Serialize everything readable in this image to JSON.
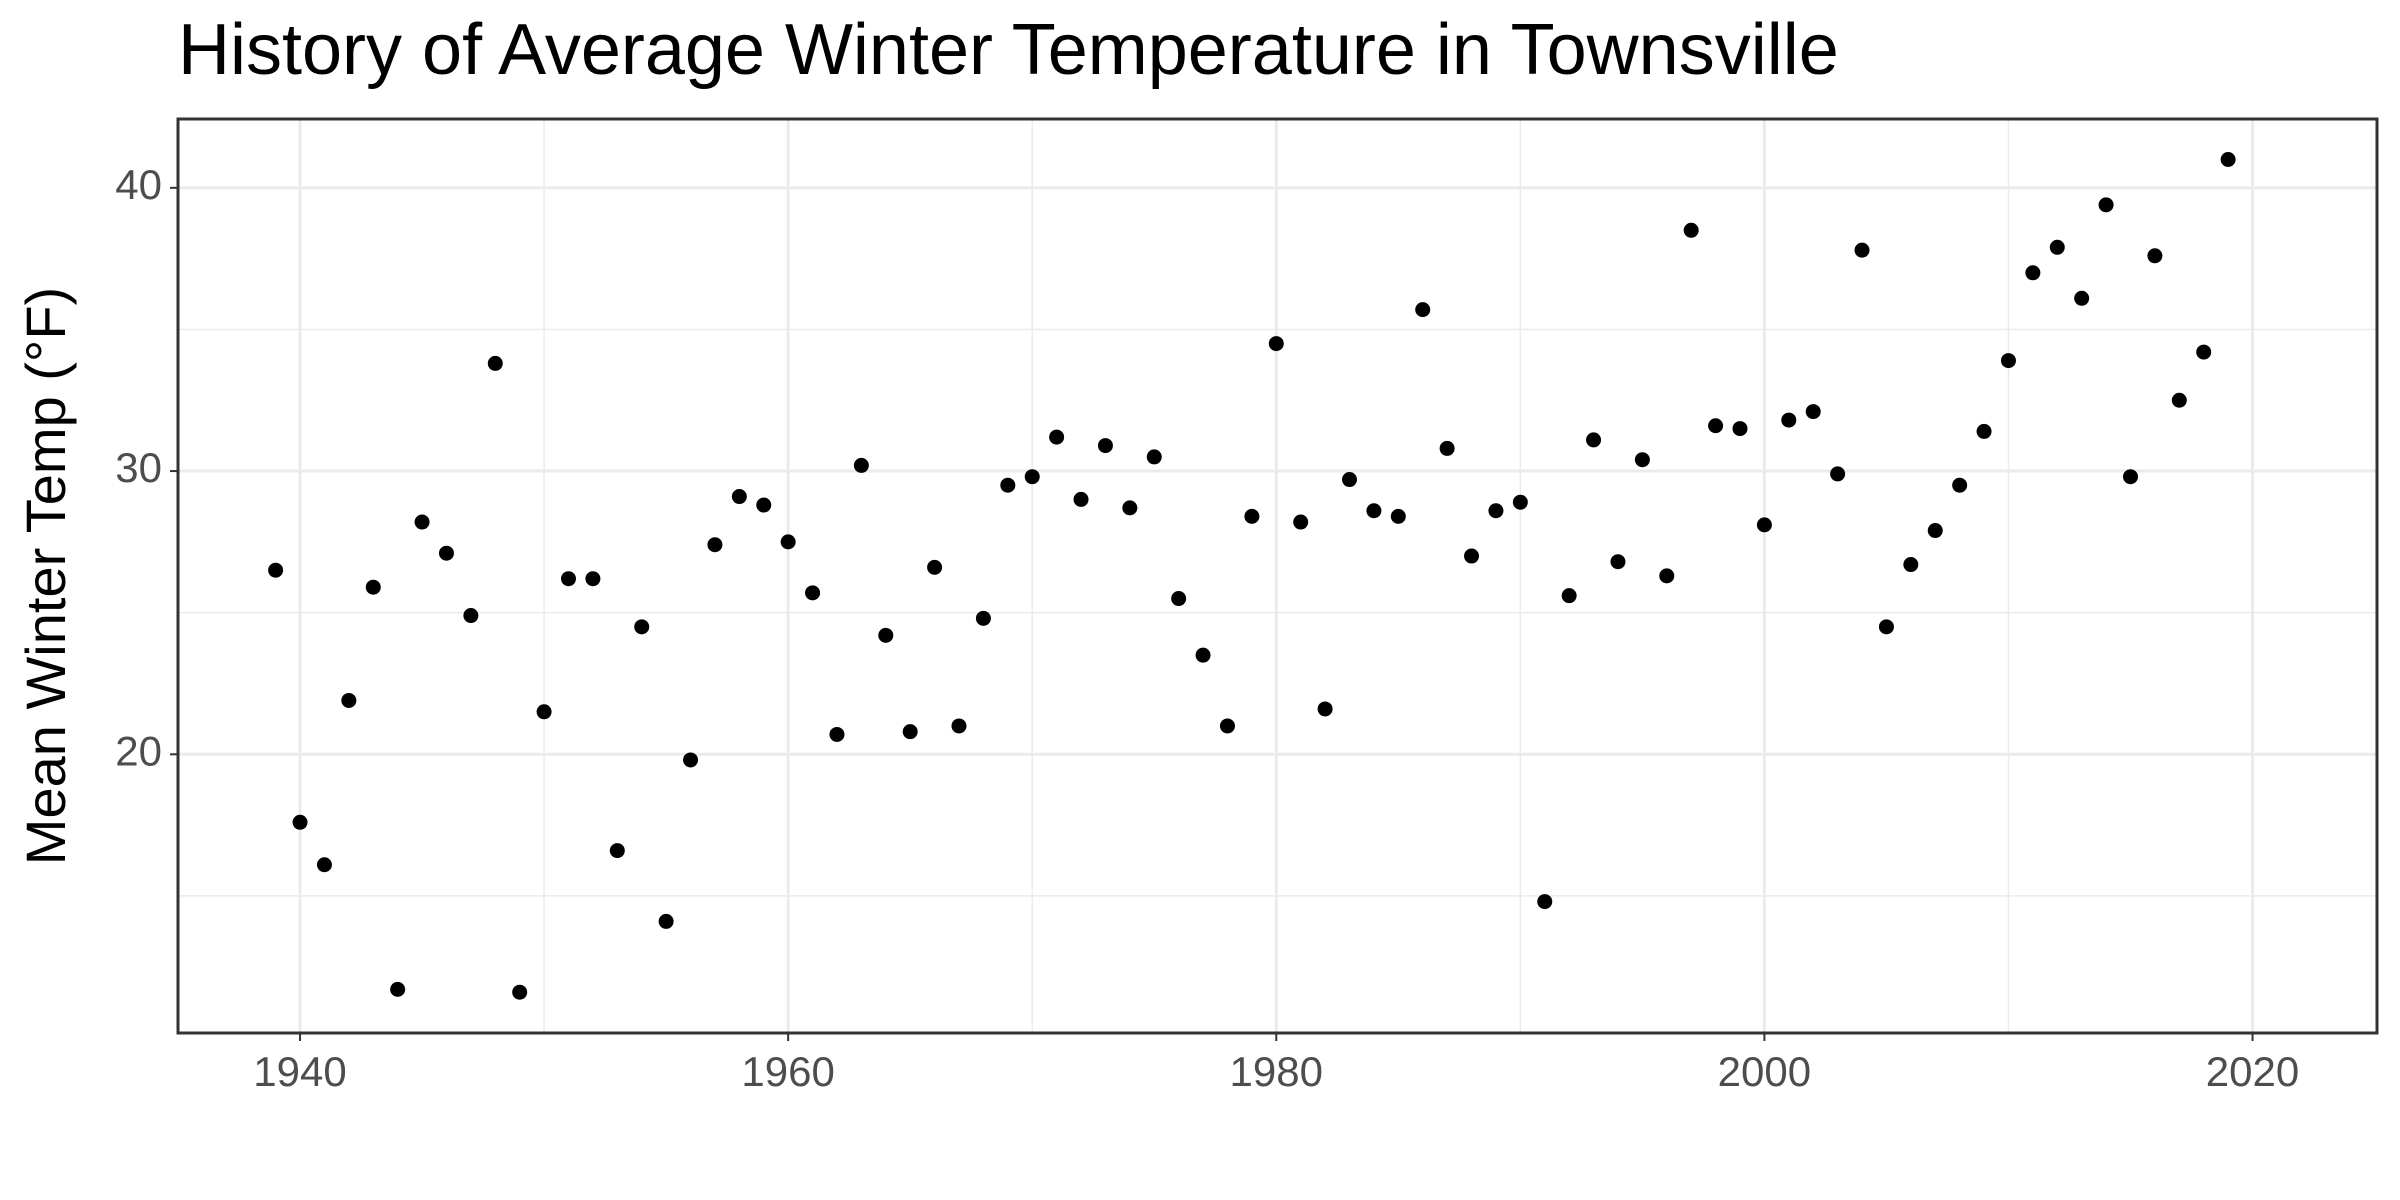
{
  "chart_data": {
    "type": "scatter",
    "title": "History of Average Winter Temperature in Townsville",
    "y_label": "Mean Winter Temp (°F)",
    "x": [
      1939,
      1940,
      1941,
      1942,
      1943,
      1944,
      1945,
      1946,
      1947,
      1948,
      1949,
      1950,
      1951,
      1952,
      1953,
      1954,
      1955,
      1956,
      1957,
      1958,
      1959,
      1960,
      1961,
      1962,
      1963,
      1964,
      1965,
      1966,
      1967,
      1968,
      1969,
      1970,
      1971,
      1972,
      1973,
      1974,
      1975,
      1976,
      1977,
      1978,
      1979,
      1980,
      1981,
      1982,
      1983,
      1984,
      1985,
      1986,
      1987,
      1988,
      1989,
      1990,
      1991,
      1992,
      1993,
      1994,
      1995,
      1996,
      1997,
      1998,
      1999,
      2000,
      2001,
      2002,
      2003,
      2004,
      2005,
      2006,
      2007,
      2008,
      2009,
      2010,
      2011,
      2012,
      2013,
      2014,
      2015,
      2016,
      2017,
      2018,
      2019
    ],
    "values": [
      26.5,
      17.6,
      16.1,
      21.9,
      25.9,
      11.7,
      28.2,
      27.1,
      24.9,
      33.8,
      11.6,
      21.5,
      26.2,
      26.2,
      16.6,
      24.5,
      14.1,
      19.8,
      27.4,
      29.1,
      28.8,
      27.5,
      25.7,
      20.7,
      30.2,
      24.2,
      20.8,
      26.6,
      21.0,
      24.8,
      29.5,
      29.8,
      31.2,
      29.0,
      30.9,
      28.7,
      30.5,
      25.5,
      23.5,
      21.0,
      28.4,
      34.5,
      28.2,
      21.6,
      29.7,
      28.6,
      28.4,
      35.7,
      30.8,
      27.0,
      28.6,
      28.9,
      14.8,
      25.6,
      31.1,
      26.8,
      30.4,
      26.3,
      38.5,
      31.6,
      31.5,
      28.1,
      31.8,
      32.1,
      29.9,
      37.8,
      24.5,
      26.7,
      27.9,
      29.5,
      31.4,
      33.9,
      37.0,
      37.9,
      36.1,
      39.4,
      29.8,
      37.6,
      32.5,
      34.2,
      41.0
    ],
    "color": "#000000",
    "xlim": [
      1935,
      2025.1
    ],
    "ylim": [
      10.16,
      42.43
    ],
    "xticks": [
      1940,
      1960,
      1980,
      2000,
      2020
    ],
    "yticks": [
      20,
      30,
      40
    ],
    "x_minor_ticks": [
      1950,
      1970,
      1990,
      2010
    ],
    "y_minor_ticks": [
      15,
      25,
      35
    ],
    "grid": true
  }
}
